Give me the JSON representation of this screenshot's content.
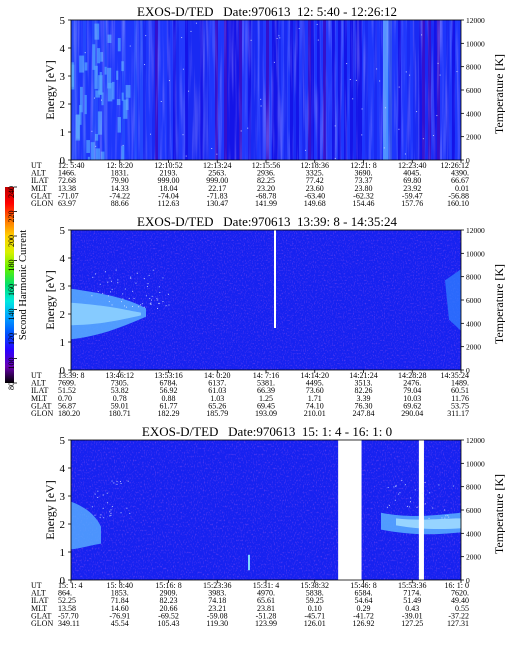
{
  "colorbar": {
    "label": "Second Harmonic Current",
    "ticks": [
      80,
      100,
      120,
      140,
      160,
      180,
      200,
      220,
      240
    ],
    "colors": [
      "#000000",
      "#6a00b0",
      "#2a00ff",
      "#0050ff",
      "#00a0ff",
      "#00e8e0",
      "#00e070",
      "#60f000",
      "#d8f000",
      "#ffd000",
      "#ff7000",
      "#ff0000",
      "#c00000"
    ]
  },
  "palette": {
    "deep": "#1414e8",
    "mid": "#1e3cff",
    "bright": "#2f7cff",
    "light": "#56a8ff",
    "dark": "#3a10a0",
    "gap": "#ffffff"
  },
  "chart_data": [
    {
      "type": "heatmap",
      "title": "EXOS-D/TED   Date:970613  12: 5:40 - 12:26:12",
      "ylabel": "Energy [eV]",
      "y2label": "Temperature [K]",
      "yticks": [
        "0",
        "1",
        "2",
        "3",
        "4",
        "5"
      ],
      "y2ticks": [
        "0",
        "2000",
        "4000",
        "6000",
        "8000",
        "10000",
        "12000"
      ],
      "ylim": [
        0,
        5
      ],
      "y2lim": [
        0,
        12000
      ],
      "gaps": [],
      "rows": [
        {
          "label": "UT",
          "values": [
            "12: 5:40",
            "12: 8:20",
            "12:10:52",
            "12:13:24",
            "12:15:56",
            "12:18:36",
            "12:21: 8",
            "12:23:40",
            "12:26:12"
          ]
        },
        {
          "label": "ALT",
          "values": [
            "1466.",
            "1831.",
            "2193.",
            "2563.",
            "2936.",
            "3325.",
            "3690.",
            "4045.",
            "4390."
          ]
        },
        {
          "label": "ILAT",
          "values": [
            "72.68",
            "79.90",
            "999.00",
            "999.00",
            "82.25",
            "77.42",
            "73.37",
            "69.80",
            "66.67"
          ]
        },
        {
          "label": "MLT",
          "values": [
            "13.38",
            "14.33",
            "18.04",
            "22.17",
            "23.20",
            "23.60",
            "23.80",
            "23.92",
            "0.01"
          ]
        },
        {
          "label": "GLAT",
          "values": [
            "-71.07",
            "-74.22",
            "-74.04",
            "-71.83",
            "-68.78",
            "-63.40",
            "-62.32",
            "-59.47",
            "-56.88"
          ]
        },
        {
          "label": "GLON",
          "values": [
            "63.97",
            "88.66",
            "112.63",
            "130.47",
            "141.99",
            "149.68",
            "154.46",
            "157.76",
            "160.10"
          ]
        }
      ]
    },
    {
      "type": "heatmap",
      "title": "EXOS-D/TED   Date:970613  13:39: 8 - 14:35:24",
      "ylabel": "Energy [eV]",
      "y2label": "Temperature [K]",
      "yticks": [
        "0",
        "1",
        "2",
        "3",
        "4",
        "5"
      ],
      "y2ticks": [
        "0",
        "2000",
        "4000",
        "6000",
        "8000",
        "10000",
        "12000"
      ],
      "ylim": [
        0,
        5
      ],
      "y2lim": [
        0,
        12000
      ],
      "gaps": [],
      "rows": [
        {
          "label": "UT",
          "values": [
            "13:39: 8",
            "13:46:12",
            "13:53:16",
            "14: 0:20",
            "14: 7:16",
            "14:14:20",
            "14:21:24",
            "14:28:28",
            "14:35:24"
          ]
        },
        {
          "label": "ALT",
          "values": [
            "7699.",
            "7305.",
            "6784.",
            "6137.",
            "5381.",
            "4495.",
            "3513.",
            "2476.",
            "1489."
          ]
        },
        {
          "label": "ILAT",
          "values": [
            "51.52",
            "53.82",
            "56.92",
            "61.03",
            "66.39",
            "73.60",
            "82.26",
            "79.04",
            "60.51"
          ]
        },
        {
          "label": "MLT",
          "values": [
            "0.70",
            "0.78",
            "0.88",
            "1.03",
            "1.25",
            "1.71",
            "3.39",
            "10.03",
            "11.76"
          ]
        },
        {
          "label": "GLAT",
          "values": [
            "56.87",
            "59.01",
            "61.77",
            "65.26",
            "69.45",
            "74.10",
            "76.30",
            "69.62",
            "53.75"
          ]
        },
        {
          "label": "GLON",
          "values": [
            "180.20",
            "180.71",
            "182.29",
            "185.79",
            "193.09",
            "210.01",
            "247.84",
            "290.04",
            "311.17"
          ]
        }
      ]
    },
    {
      "type": "heatmap",
      "title": "EXOS-D/TED   Date:970613  15: 1: 4 - 16: 1: 0",
      "ylabel": "Energy [eV]",
      "y2label": "Temperature [K]",
      "yticks": [
        "0",
        "1",
        "2",
        "3",
        "4",
        "5"
      ],
      "y2ticks": [
        "0",
        "2000",
        "4000",
        "6000",
        "8000",
        "10000",
        "12000"
      ],
      "ylim": [
        0,
        5
      ],
      "y2lim": [
        0,
        12000
      ],
      "gaps": [
        [
          0.685,
          0.745
        ],
        [
          0.892,
          0.905
        ]
      ],
      "rows": [
        {
          "label": "UT",
          "values": [
            "15: 1: 4",
            "15: 8:40",
            "15:16: 8",
            "15:23:36",
            "15:31: 4",
            "15:38:32",
            "15:46: 8",
            "15:53:36",
            "16: 1: 0"
          ]
        },
        {
          "label": "ALT",
          "values": [
            "864.",
            "1853.",
            "2909.",
            "3983.",
            "4970.",
            "5838.",
            "6584.",
            "7174.",
            "7620."
          ]
        },
        {
          "label": "ILAT",
          "values": [
            "52.25",
            "71.84",
            "82.23",
            "74.18",
            "65.61",
            "59.25",
            "54.64",
            "51.49",
            "49.40"
          ]
        },
        {
          "label": "MLT",
          "values": [
            "13.58",
            "14.60",
            "20.66",
            "23.21",
            "23.81",
            "0.10",
            "0.29",
            "0.43",
            "0.55"
          ]
        },
        {
          "label": "GLAT",
          "values": [
            "-57.70",
            "-76.91",
            "-69.52",
            "-59.08",
            "-51.28",
            "-45.71",
            "-41.72",
            "-39.01",
            "-37.22"
          ]
        },
        {
          "label": "GLON",
          "values": [
            "349.11",
            "45.54",
            "105.43",
            "119.30",
            "123.99",
            "126.01",
            "126.92",
            "127.25",
            "127.31"
          ]
        }
      ]
    }
  ]
}
